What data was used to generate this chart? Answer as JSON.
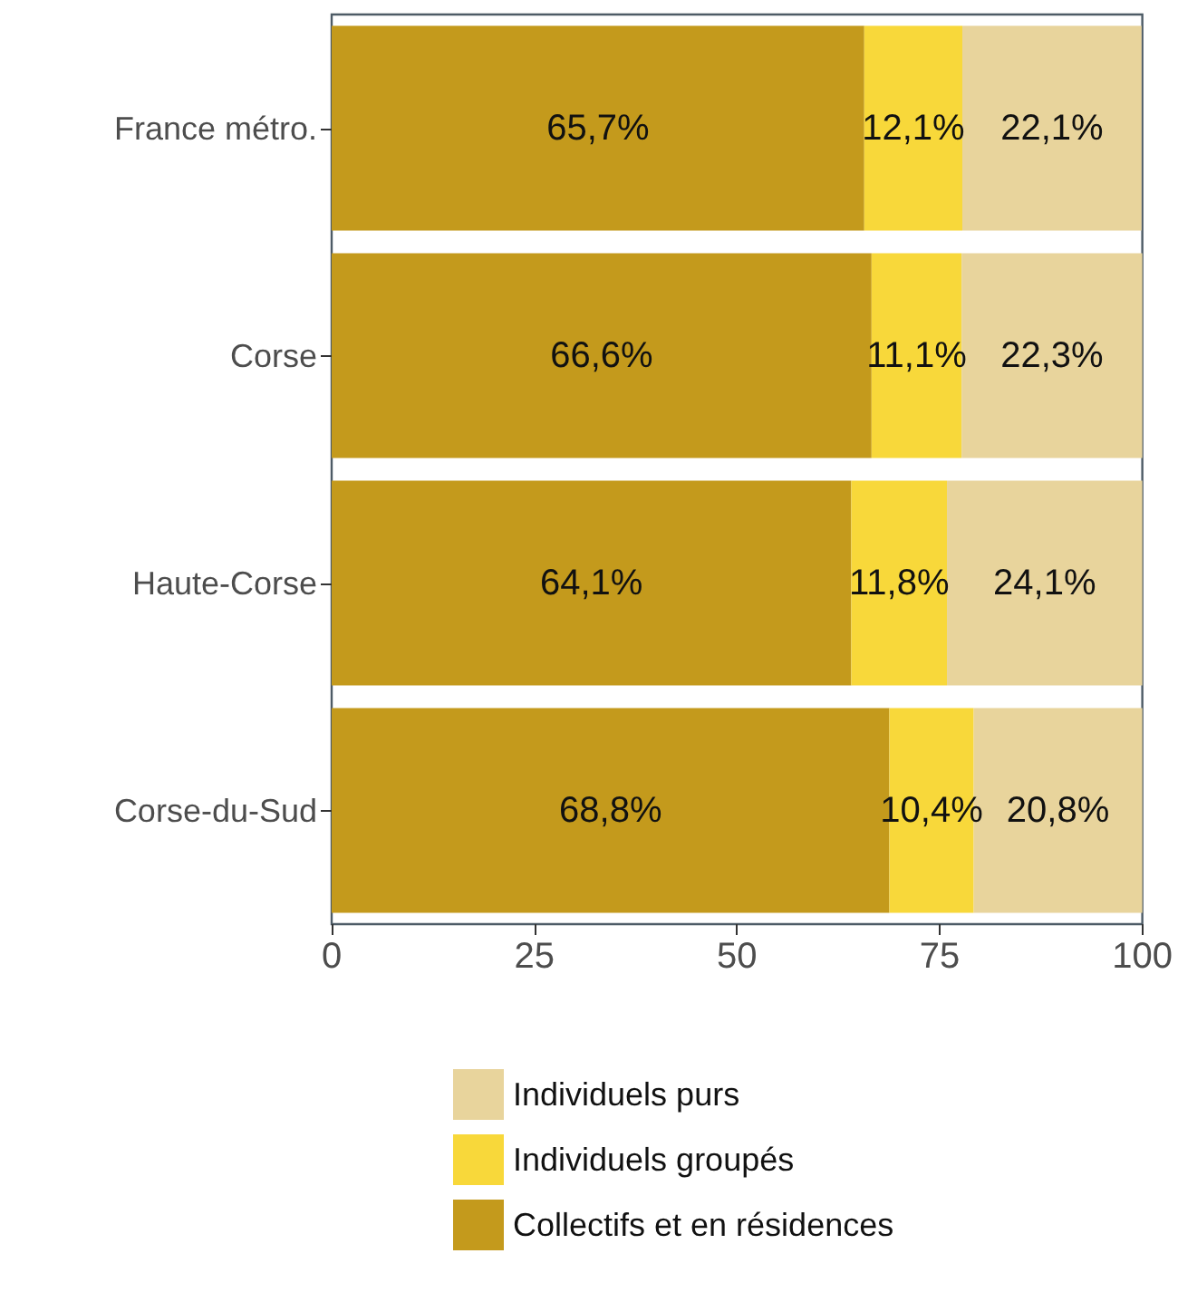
{
  "chart_data": {
    "type": "bar",
    "orientation": "horizontal",
    "stacked": true,
    "categories": [
      "France métro.",
      "Corse",
      "Haute-Corse",
      "Corse-du-Sud"
    ],
    "series": [
      {
        "name": "Collectifs et en résidences",
        "color": "#c49a1c",
        "values": [
          65.7,
          66.6,
          64.1,
          68.8
        ],
        "value_labels": [
          "65,7%",
          "66,6%",
          "64,1%",
          "68,8%"
        ]
      },
      {
        "name": "Individuels groupés",
        "color": "#f8d83a",
        "values": [
          12.1,
          11.1,
          11.8,
          10.4
        ],
        "value_labels": [
          "12,1%",
          "11,1%",
          "11,8%",
          "10,4%"
        ]
      },
      {
        "name": "Individuels purs",
        "color": "#e8d49c",
        "values": [
          22.1,
          22.3,
          24.1,
          20.8
        ],
        "value_labels": [
          "22,1%",
          "22,3%",
          "24,1%",
          "20,8%"
        ]
      }
    ],
    "xlim": [
      0,
      100
    ],
    "xticks": [
      0,
      25,
      50,
      75,
      100
    ],
    "grid": false,
    "legend": "bottom"
  }
}
